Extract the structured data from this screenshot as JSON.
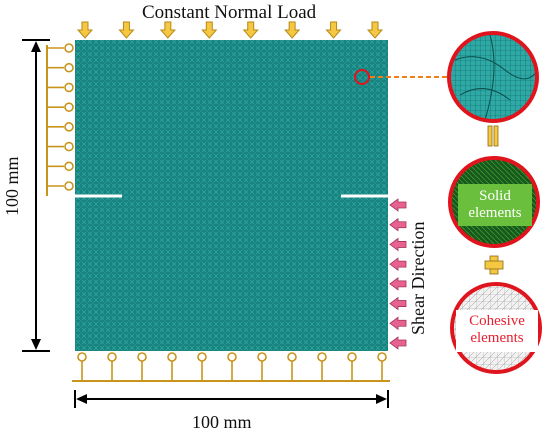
{
  "labels": {
    "title": "Constant Normal Load",
    "width": "100 mm",
    "height": "100 mm",
    "shear": "Shear Direction",
    "solid_line1": "Solid",
    "solid_line2": "elements",
    "cohesive_line1": "Cohesive",
    "cohesive_line2": "elements"
  },
  "colors": {
    "mesh": "#1a8a86",
    "arrow_fill": "#f6c743",
    "arrow_stroke": "#b58a16",
    "shear_arrow": "#e8628f",
    "support": "#c8951a",
    "circle_border": "#e0141c",
    "solid_green": "#6ac03d",
    "cohesive_text": "#e8202f",
    "connector": "#f07f1a"
  },
  "icons": {
    "load_arrow": "down-arrow-icon",
    "shear_arrow": "left-arrow-icon",
    "support": "roller-support-icon"
  },
  "counts": {
    "load_arrows": 8,
    "shear_arrows": 8,
    "left_rollers": 8,
    "bottom_rollers": 11
  }
}
